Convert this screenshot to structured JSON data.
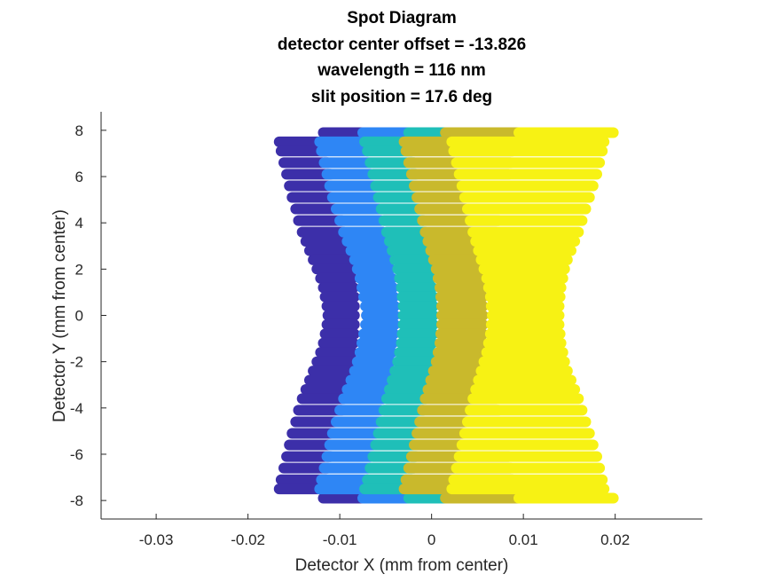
{
  "chart_data": {
    "type": "scatter",
    "title_lines": [
      "Spot Diagram",
      "detector center offset = -13.826",
      "wavelength = 116 nm",
      "slit position = 17.6 deg"
    ],
    "xlabel": "Detector X (mm from center)",
    "ylabel": "Detector Y (mm from center)",
    "xlim": [
      -0.036,
      0.0295
    ],
    "ylim": [
      -8.8,
      8.8
    ],
    "x_ticks": [
      -0.03,
      -0.02,
      -0.01,
      0,
      0.01,
      0.02
    ],
    "x_tick_labels": [
      "-0.03",
      "-0.02",
      "-0.01",
      "0",
      "0.01",
      "0.02"
    ],
    "y_ticks": [
      -8,
      -6,
      -4,
      -2,
      0,
      2,
      4,
      6,
      8
    ],
    "y_tick_labels": [
      "-8",
      "-6",
      "-4",
      "-2",
      "0",
      "2",
      "4",
      "6",
      "8"
    ],
    "marker": "filled-circle",
    "row_y_values": [
      7.9,
      7.5,
      7.1,
      6.6,
      6.1,
      5.6,
      5.1,
      4.6,
      4.1,
      3.6,
      3.2,
      2.8,
      2.4,
      2.0,
      1.6,
      1.2,
      0.8,
      0.4,
      0.0,
      -0.4,
      -0.8,
      -1.2,
      -1.6,
      -2.0,
      -2.4,
      -2.8,
      -3.2,
      -3.6,
      -4.1,
      -4.6,
      -5.1,
      -5.6,
      -6.1,
      -6.6,
      -7.1,
      -7.5,
      -7.9
    ],
    "series": [
      {
        "color": "#3c2fa9",
        "segments": [
          [
            -0.0118,
            -0.0072
          ],
          [
            -0.0166,
            -0.0118
          ],
          [
            -0.0164,
            -0.0115
          ],
          [
            -0.0161,
            -0.0113
          ],
          [
            -0.0158,
            -0.011
          ],
          [
            -0.0155,
            -0.0107
          ],
          [
            -0.0152,
            -0.0104
          ],
          [
            -0.0148,
            -0.0101
          ],
          [
            -0.0145,
            -0.0098
          ],
          [
            -0.0141,
            -0.0096
          ],
          [
            -0.0137,
            -0.0094
          ],
          [
            -0.0133,
            -0.0092
          ],
          [
            -0.0129,
            -0.009
          ],
          [
            -0.0125,
            -0.0088
          ],
          [
            -0.0121,
            -0.0086
          ],
          [
            -0.0118,
            -0.0085
          ],
          [
            -0.0116,
            -0.0084
          ],
          [
            -0.0114,
            -0.0084
          ],
          [
            -0.0113,
            -0.0084
          ],
          [
            -0.0114,
            -0.0084
          ],
          [
            -0.0116,
            -0.0084
          ],
          [
            -0.0118,
            -0.0085
          ],
          [
            -0.0121,
            -0.0086
          ],
          [
            -0.0125,
            -0.0088
          ],
          [
            -0.0129,
            -0.009
          ],
          [
            -0.0133,
            -0.0092
          ],
          [
            -0.0137,
            -0.0094
          ],
          [
            -0.0141,
            -0.0096
          ],
          [
            -0.0145,
            -0.0098
          ],
          [
            -0.0148,
            -0.0101
          ],
          [
            -0.0152,
            -0.0104
          ],
          [
            -0.0155,
            -0.0107
          ],
          [
            -0.0158,
            -0.011
          ],
          [
            -0.0161,
            -0.0113
          ],
          [
            -0.0164,
            -0.0115
          ],
          [
            -0.0166,
            -0.0118
          ],
          [
            -0.0118,
            -0.0072
          ]
        ]
      },
      {
        "color": "#2e86f5",
        "segments": [
          [
            -0.0075,
            -0.0025
          ],
          [
            -0.0122,
            -0.0072
          ],
          [
            -0.012,
            -0.007
          ],
          [
            -0.0117,
            -0.0068
          ],
          [
            -0.0114,
            -0.0066
          ],
          [
            -0.0111,
            -0.0063
          ],
          [
            -0.0108,
            -0.006
          ],
          [
            -0.0104,
            -0.0057
          ],
          [
            -0.01,
            -0.0055
          ],
          [
            -0.0096,
            -0.0053
          ],
          [
            -0.0092,
            -0.0051
          ],
          [
            -0.0088,
            -0.0049
          ],
          [
            -0.0084,
            -0.0047
          ],
          [
            -0.0081,
            -0.0045
          ],
          [
            -0.0078,
            -0.0043
          ],
          [
            -0.0076,
            -0.0042
          ],
          [
            -0.0074,
            -0.0041
          ],
          [
            -0.0072,
            -0.004
          ],
          [
            -0.0071,
            -0.004
          ],
          [
            -0.0072,
            -0.004
          ],
          [
            -0.0074,
            -0.0041
          ],
          [
            -0.0076,
            -0.0042
          ],
          [
            -0.0078,
            -0.0043
          ],
          [
            -0.0081,
            -0.0045
          ],
          [
            -0.0084,
            -0.0047
          ],
          [
            -0.0088,
            -0.0049
          ],
          [
            -0.0092,
            -0.0051
          ],
          [
            -0.0096,
            -0.0053
          ],
          [
            -0.01,
            -0.0055
          ],
          [
            -0.0104,
            -0.0057
          ],
          [
            -0.0108,
            -0.006
          ],
          [
            -0.0111,
            -0.0063
          ],
          [
            -0.0114,
            -0.0066
          ],
          [
            -0.0117,
            -0.0068
          ],
          [
            -0.012,
            -0.007
          ],
          [
            -0.0122,
            -0.0072
          ],
          [
            -0.0075,
            -0.0025
          ]
        ]
      },
      {
        "color": "#1fbfb8",
        "segments": [
          [
            -0.0025,
            0.0025
          ],
          [
            -0.0073,
            -0.0025
          ],
          [
            -0.007,
            -0.0022
          ],
          [
            -0.0067,
            -0.0019
          ],
          [
            -0.0064,
            -0.0017
          ],
          [
            -0.0061,
            -0.0015
          ],
          [
            -0.0058,
            -0.0013
          ],
          [
            -0.0055,
            -0.0011
          ],
          [
            -0.0052,
            -0.0009
          ],
          [
            -0.0049,
            -0.0007
          ],
          [
            -0.0046,
            -0.0005
          ],
          [
            -0.0043,
            -0.0003
          ],
          [
            -0.004,
            -0.0002
          ],
          [
            -0.0037,
            -0.0001
          ],
          [
            -0.0035,
            0.0
          ],
          [
            -0.0033,
            0.0001
          ],
          [
            -0.0032,
            0.0002
          ],
          [
            -0.0031,
            0.0002
          ],
          [
            -0.0031,
            0.0002
          ],
          [
            -0.0031,
            0.0002
          ],
          [
            -0.0032,
            0.0002
          ],
          [
            -0.0033,
            0.0001
          ],
          [
            -0.0035,
            0.0
          ],
          [
            -0.0037,
            -0.0001
          ],
          [
            -0.004,
            -0.0002
          ],
          [
            -0.0043,
            -0.0003
          ],
          [
            -0.0046,
            -0.0005
          ],
          [
            -0.0049,
            -0.0007
          ],
          [
            -0.0052,
            -0.0009
          ],
          [
            -0.0055,
            -0.0011
          ],
          [
            -0.0058,
            -0.0013
          ],
          [
            -0.0061,
            -0.0015
          ],
          [
            -0.0064,
            -0.0017
          ],
          [
            -0.0067,
            -0.0019
          ],
          [
            -0.007,
            -0.0022
          ],
          [
            -0.0073,
            -0.0025
          ],
          [
            -0.0025,
            0.0025
          ]
        ]
      },
      {
        "color": "#c9b92c",
        "segments": [
          [
            0.0015,
            0.0095
          ],
          [
            -0.003,
            0.009
          ],
          [
            -0.0028,
            0.0088
          ],
          [
            -0.0025,
            0.0086
          ],
          [
            -0.0022,
            0.0084
          ],
          [
            -0.0019,
            0.0082
          ],
          [
            -0.0016,
            0.0079
          ],
          [
            -0.0013,
            0.0076
          ],
          [
            -0.001,
            0.0073
          ],
          [
            -0.0007,
            0.007
          ],
          [
            -0.0004,
            0.0067
          ],
          [
            -0.0001,
            0.0064
          ],
          [
            0.0002,
            0.0062
          ],
          [
            0.0005,
            0.006
          ],
          [
            0.0007,
            0.0058
          ],
          [
            0.0009,
            0.0057
          ],
          [
            0.001,
            0.0056
          ],
          [
            0.0011,
            0.0056
          ],
          [
            0.0011,
            0.0056
          ],
          [
            0.0011,
            0.0056
          ],
          [
            0.001,
            0.0056
          ],
          [
            0.0009,
            0.0057
          ],
          [
            0.0007,
            0.0058
          ],
          [
            0.0005,
            0.006
          ],
          [
            0.0002,
            0.0062
          ],
          [
            -0.0001,
            0.0064
          ],
          [
            -0.0004,
            0.0067
          ],
          [
            -0.0007,
            0.007
          ],
          [
            -0.001,
            0.0073
          ],
          [
            -0.0013,
            0.0076
          ],
          [
            -0.0016,
            0.0079
          ],
          [
            -0.0019,
            0.0082
          ],
          [
            -0.0022,
            0.0084
          ],
          [
            -0.0025,
            0.0086
          ],
          [
            -0.0028,
            0.0088
          ],
          [
            -0.003,
            0.009
          ],
          [
            0.0015,
            0.0095
          ]
        ]
      },
      {
        "color": "#f7f214",
        "segments": [
          [
            0.0095,
            0.0198
          ],
          [
            0.0022,
            0.0188
          ],
          [
            0.0024,
            0.0186
          ],
          [
            0.0027,
            0.0183
          ],
          [
            0.003,
            0.018
          ],
          [
            0.0033,
            0.0176
          ],
          [
            0.0036,
            0.0172
          ],
          [
            0.0039,
            0.0168
          ],
          [
            0.0042,
            0.0164
          ],
          [
            0.0045,
            0.016
          ],
          [
            0.0048,
            0.0156
          ],
          [
            0.0051,
            0.0152
          ],
          [
            0.0054,
            0.0148
          ],
          [
            0.0057,
            0.0145
          ],
          [
            0.006,
            0.0143
          ],
          [
            0.0062,
            0.0141
          ],
          [
            0.0064,
            0.014
          ],
          [
            0.0065,
            0.0139
          ],
          [
            0.0066,
            0.0139
          ],
          [
            0.0065,
            0.0139
          ],
          [
            0.0064,
            0.014
          ],
          [
            0.0062,
            0.0141
          ],
          [
            0.006,
            0.0143
          ],
          [
            0.0057,
            0.0145
          ],
          [
            0.0054,
            0.0148
          ],
          [
            0.0051,
            0.0152
          ],
          [
            0.0048,
            0.0156
          ],
          [
            0.0045,
            0.016
          ],
          [
            0.0042,
            0.0164
          ],
          [
            0.0039,
            0.0168
          ],
          [
            0.0036,
            0.0172
          ],
          [
            0.0033,
            0.0176
          ],
          [
            0.003,
            0.018
          ],
          [
            0.0027,
            0.0183
          ],
          [
            0.0024,
            0.0186
          ],
          [
            0.0022,
            0.0188
          ],
          [
            0.0095,
            0.0198
          ]
        ]
      }
    ]
  }
}
